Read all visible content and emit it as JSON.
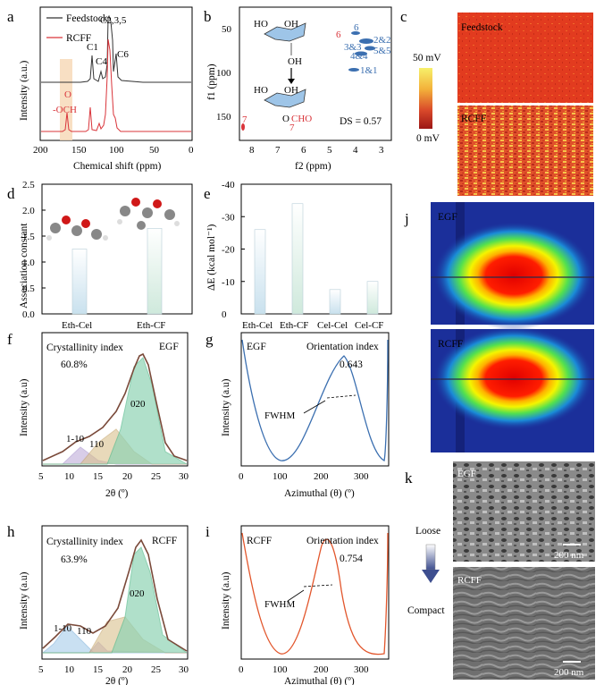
{
  "panels": {
    "a": {
      "label": "a",
      "xlabel": "Chemical shift (ppm)",
      "ylabel": "Intensity (a.u.)",
      "xticks": [
        "200",
        "150",
        "100",
        "50",
        "0"
      ],
      "legend": [
        "Feedstock",
        "RCFF"
      ],
      "peaks": [
        "C1",
        "C4",
        "C2,3,5",
        "C6"
      ],
      "och_o": "O",
      "och": "-OCH"
    },
    "b": {
      "label": "b",
      "xlabel": "f2 (ppm)",
      "ylabel": "f1 (ppm)",
      "xticks": [
        "8",
        "7",
        "6",
        "5",
        "4",
        "3"
      ],
      "yticks": [
        "50",
        "100",
        "150"
      ],
      "ds": "DS = 0.57",
      "ring_top": [
        "HO",
        "3",
        "2",
        "OH",
        "1",
        "4",
        "5",
        "6",
        "O",
        "OH"
      ],
      "ring_bottom": [
        "HO",
        "3",
        "2",
        "OH",
        "1",
        "4",
        "5",
        "6",
        "O",
        "O",
        "CHO",
        "7"
      ],
      "cross": [
        "6",
        "6",
        "3&3",
        "2&2",
        "4&4",
        "5&5",
        "1&1",
        "7"
      ]
    },
    "c": {
      "label": "c",
      "top": "Feedstock",
      "bottom": "RCFF",
      "scale_max": "50 mV",
      "scale_min": "0 mV"
    },
    "d": {
      "label": "d",
      "ylabel": "Association constant",
      "yticks": [
        "0.0",
        "0.5",
        "1.0",
        "1.5",
        "2.0",
        "2.5"
      ]
    },
    "e": {
      "label": "e",
      "ylabel": "ΔE (kcal mol⁻¹)",
      "yticks": [
        "0",
        "-10",
        "-20",
        "-30",
        "-40"
      ]
    },
    "f": {
      "label": "f",
      "title": "Crystallinity index",
      "value": "60.8%",
      "sample": "EGF",
      "xlabel": "2θ (º)",
      "ylabel": "Intensity (a.u)",
      "xticks": [
        "5",
        "10",
        "15",
        "20",
        "25",
        "30"
      ],
      "peaks": [
        "1-10",
        "110",
        "020"
      ]
    },
    "g": {
      "label": "g",
      "sample": "EGF",
      "title": "Orientation index",
      "value": "0.643",
      "fwhm": "FWHM",
      "xlabel": "Azimuthal (θ) (º)",
      "ylabel": "Intensity (a.u)",
      "xticks": [
        "0",
        "100",
        "200",
        "300"
      ]
    },
    "h": {
      "label": "h",
      "title": "Crystallinity index",
      "value": "63.9%",
      "sample": "RCFF",
      "xlabel": "2θ (º)",
      "ylabel": "Intensity (a.u)",
      "xticks": [
        "5",
        "10",
        "15",
        "20",
        "25",
        "30"
      ],
      "peaks": [
        "1-10",
        "110",
        "020"
      ]
    },
    "i": {
      "label": "i",
      "sample": "RCFF",
      "title": "Orientation index",
      "value": "0.754",
      "fwhm": "FWHM",
      "xlabel": "Azimuthal (θ) (º)",
      "ylabel": "Intensity (a.u)",
      "xticks": [
        "0",
        "100",
        "200",
        "300"
      ]
    },
    "j": {
      "label": "j",
      "top": "EGF",
      "bottom": "RCFF"
    },
    "k": {
      "label": "k",
      "top": "EGF",
      "bottom": "RCFF",
      "loose": "Loose",
      "compact": "Compact",
      "scale": "200 nm"
    }
  },
  "chart_data": [
    {
      "type": "bar",
      "panel": "d",
      "categories": [
        "Eth-Cel",
        "Eth-CF"
      ],
      "values": [
        1.25,
        1.65
      ],
      "ylabel": "Association constant",
      "ylim": [
        0,
        2.5
      ]
    },
    {
      "type": "bar",
      "panel": "e",
      "categories": [
        "Eth-Cel",
        "Eth-CF",
        "Cel-Cel",
        "Cel-CF"
      ],
      "values": [
        -26,
        -34,
        -7.5,
        -10
      ],
      "ylabel": "ΔE (kcal mol⁻¹)",
      "ylim": [
        0,
        -40
      ]
    }
  ],
  "colors": {
    "black_line": "#333333",
    "red_line": "#d9343a",
    "blue_line": "#3b6fb0",
    "orange_line": "#e2562c",
    "bar_blue": "#d6e9f3",
    "bar_green": "#d9eee6",
    "fit_green": "#8fd3b4",
    "fit_purple": "#b9a6d6",
    "fit_tan": "#d9c08d",
    "fit_blue": "#9ec8e8"
  }
}
